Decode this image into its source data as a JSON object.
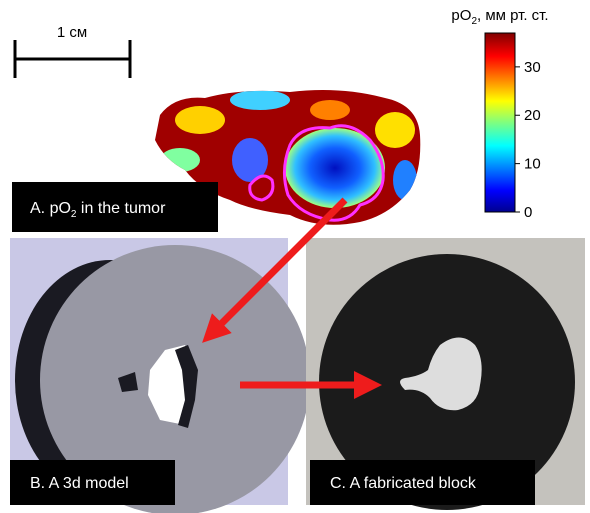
{
  "scale_bar": {
    "label": "1 см"
  },
  "colorbar": {
    "title": [
      "pO",
      "2",
      ", мм рт. ст."
    ],
    "lim": [
      0,
      37
    ],
    "ticks": [
      0,
      10,
      20,
      30
    ]
  },
  "panels": [
    {
      "label": [
        "A. pO",
        "2",
        " in the tumor"
      ]
    },
    {
      "label": [
        "B. A 3d model"
      ]
    },
    {
      "label": [
        "C. A fabricated block"
      ]
    }
  ]
}
